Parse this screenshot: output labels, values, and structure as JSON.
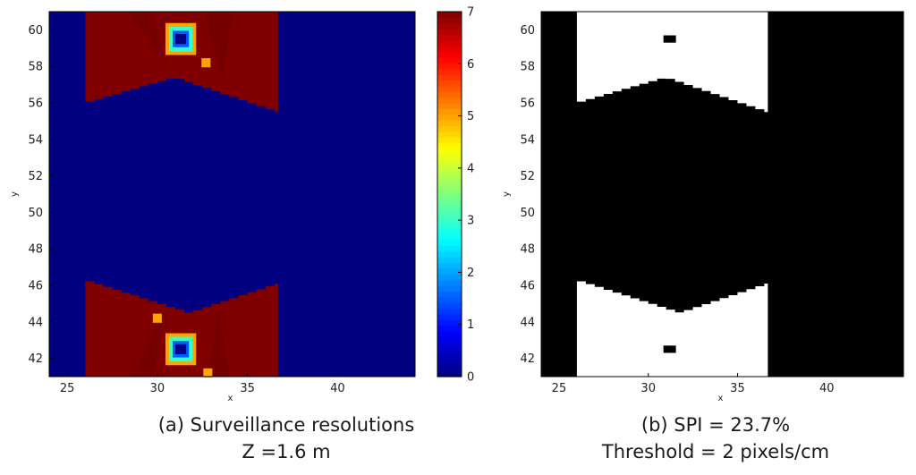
{
  "chart_data": [
    {
      "type": "heatmap",
      "panel_label": "(a)",
      "title": "Surveillance resolutions",
      "subtitle": "Z =1.6 m",
      "xlabel": "x",
      "ylabel": "y",
      "xlim": [
        24,
        44.3
      ],
      "ylim": [
        41,
        61
      ],
      "x_ticks": [
        25,
        30,
        35,
        40
      ],
      "y_ticks": [
        42,
        44,
        46,
        48,
        50,
        52,
        54,
        56,
        58,
        60
      ],
      "colorbar": {
        "min": 0,
        "max": 7,
        "ticks": [
          0,
          1,
          2,
          3,
          4,
          5,
          6,
          7
        ],
        "colormap": "jet"
      },
      "background_value": 0,
      "covered_region": {
        "x_range": [
          26,
          36.7
        ],
        "value": 7,
        "top_boundary": [
          [
            26,
            56.0
          ],
          [
            31,
            57.4
          ],
          [
            36.7,
            55.5
          ]
        ],
        "bottom_boundary": [
          [
            26,
            46.3
          ],
          [
            31.8,
            44.5
          ],
          [
            36.7,
            46.1
          ]
        ]
      },
      "hotspots": [
        {
          "x": 31.3,
          "y": 59.5,
          "values": [
            7,
            5,
            3,
            1.5,
            0
          ]
        },
        {
          "x": 31.3,
          "y": 42.5,
          "values": [
            7,
            5,
            3,
            1.5,
            0
          ]
        }
      ],
      "minor_marks": [
        {
          "x": 32.7,
          "y": 58.2,
          "value": 5
        },
        {
          "x": 30.0,
          "y": 44.2,
          "value": 5
        },
        {
          "x": 32.8,
          "y": 41.2,
          "value": 5
        }
      ]
    },
    {
      "type": "heatmap",
      "panel_label": "(b)",
      "title": "SPI = 23.7%",
      "subtitle": "Threshold = 2 pixels/cm",
      "xlabel": "x",
      "ylabel": "y",
      "xlim": [
        24,
        44.3
      ],
      "ylim": [
        41,
        61
      ],
      "x_ticks": [
        25,
        30,
        35,
        40
      ],
      "y_ticks": [
        42,
        44,
        46,
        48,
        50,
        52,
        54,
        56,
        58,
        60
      ],
      "colors": {
        "above_threshold": "#ffffff",
        "below_threshold": "#000000"
      },
      "white_regions": {
        "x_range": [
          26,
          36.7
        ],
        "top_boundary": [
          [
            26,
            56.0
          ],
          [
            31,
            57.4
          ],
          [
            36.7,
            55.5
          ]
        ],
        "bottom_boundary": [
          [
            26,
            46.3
          ],
          [
            31.8,
            44.5
          ],
          [
            36.7,
            46.1
          ]
        ]
      },
      "black_marks": [
        {
          "x": 31.2,
          "y": 59.5
        },
        {
          "x": 31.2,
          "y": 42.5
        }
      ]
    }
  ],
  "captions": [
    {
      "line1": "(a)  Surveillance resolutions",
      "line2": "Z =1.6 m"
    },
    {
      "line1": "(b) SPI = 23.7%",
      "line2": "Threshold = 2 pixels/cm"
    }
  ],
  "colors": {
    "jet_low": "#00008f",
    "jet_high": "#800000"
  }
}
